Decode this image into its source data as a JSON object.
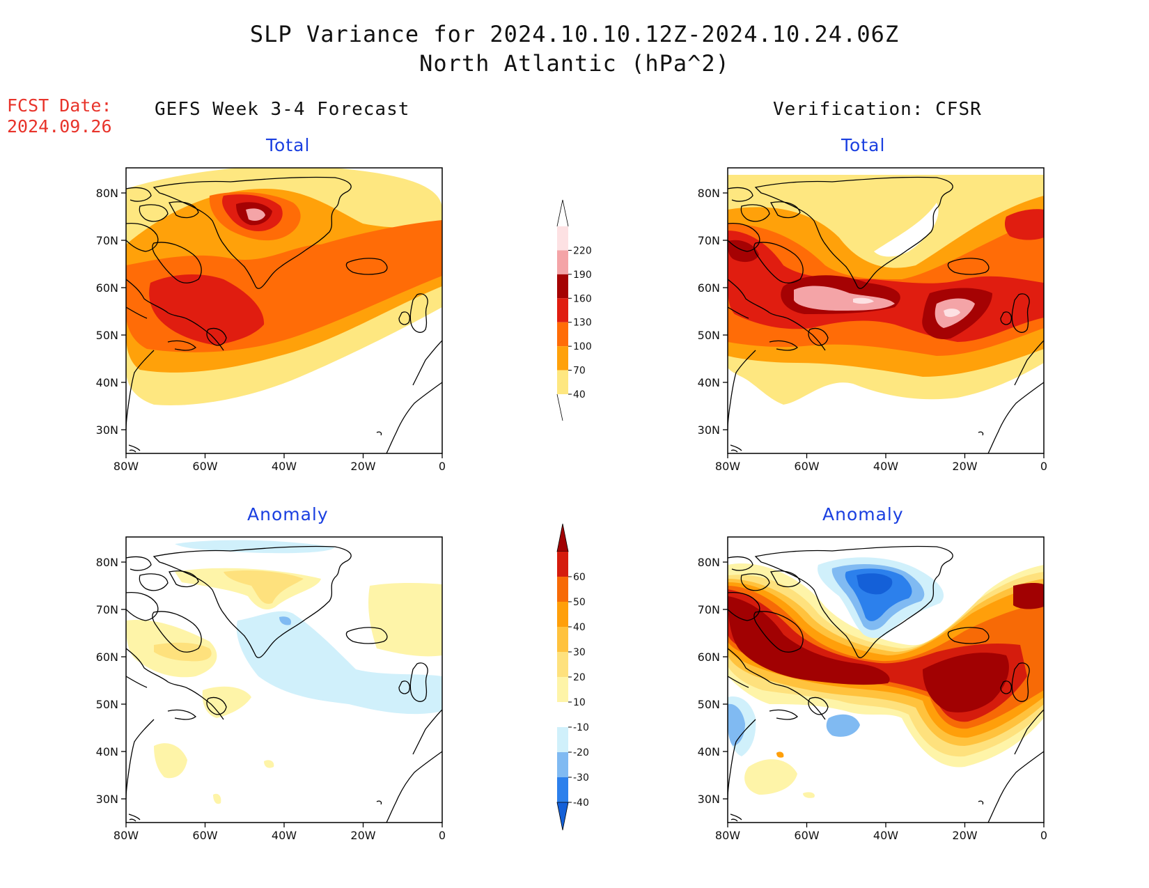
{
  "header": {
    "title_line1": "SLP Variance for 2024.10.10.12Z-2024.10.24.06Z",
    "title_line2": "North Atlantic (hPa^2)",
    "fcst_label": "FCST Date:",
    "fcst_date": "2024.09.26"
  },
  "columns": {
    "left": "GEFS Week 3-4 Forecast",
    "right": "Verification: CFSR"
  },
  "panels": {
    "top_label": "Total",
    "bottom_label": "Anomaly"
  },
  "axes": {
    "lat_ticks": [
      "80N",
      "70N",
      "60N",
      "50N",
      "40N",
      "30N"
    ],
    "lon_ticks": [
      "80W",
      "60W",
      "40W",
      "20W",
      "0"
    ]
  },
  "colorbars": {
    "total": {
      "levels": [
        "40",
        "70",
        "100",
        "130",
        "160",
        "190",
        "220"
      ],
      "colors": [
        "#fee780",
        "#ffa10a",
        "#ff6c07",
        "#e01d10",
        "#a50203",
        "#f4a4a7",
        "#fde1e3"
      ]
    },
    "anomaly": {
      "levels": [
        "-40",
        "-30",
        "-20",
        "-10",
        "10",
        "20",
        "30",
        "40",
        "50",
        "60"
      ],
      "colors": [
        "#1460d8",
        "#2c80ec",
        "#80baf2",
        "#d0f0fb",
        "#ffffff",
        "#fef4a8",
        "#fee17d",
        "#ffc23d",
        "#ff9f0a",
        "#f76a06",
        "#d51c0d",
        "#a10102"
      ]
    }
  }
}
